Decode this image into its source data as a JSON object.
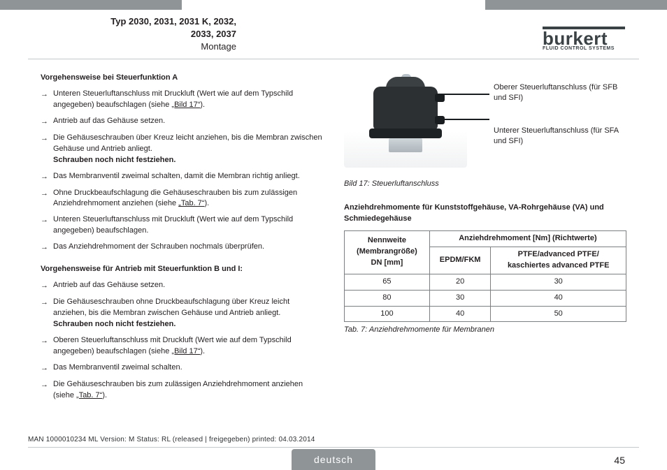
{
  "header": {
    "title_line1": "Typ 2030, 2031, 2031 K, 2032,",
    "title_line2": "2033, 2037",
    "subtitle": "Montage"
  },
  "logo": {
    "brand": "burkert",
    "tagline": "FLUID CONTROL SYSTEMS"
  },
  "colors": {
    "bar": "#8f9497",
    "text": "#231f20",
    "rule": "#c5c8ca",
    "tableBorder": "#7b7f82",
    "logo": "#3a4246"
  },
  "left": {
    "headingA": "Vorgehensweise bei Steuerfunktion A",
    "stepsA": [
      "Unteren Steuerluftanschluss mit Druckluft (Wert wie auf dem Typschild angegeben) beaufschlagen (siehe „Bild 17“).",
      "Antrieb auf das Gehäuse setzen.",
      "Die Gehäuseschrauben über Kreuz leicht anziehen, bis die Membran zwischen Gehäuse und Antrieb anliegt. Schrauben noch nicht festziehen.",
      "Das Membranventil zweimal schalten, damit die Membran richtig anliegt.",
      "Ohne Druckbeaufschlagung die Gehäuseschrauben bis zum zulässigen Anziehdrehmoment anziehen (siehe „Tab. 7“).",
      "Unteren Steuerluftanschluss mit Druckluft (Wert wie auf dem Typschild angegeben) beaufschlagen.",
      "Das Anziehdrehmoment der Schrauben nochmals überprüfen."
    ],
    "headingB": "Vorgehensweise für Antrieb mit Steuerfunktion B und I:",
    "stepsB": [
      "Antrieb auf das Gehäuse setzen.",
      "Die Gehäuseschrauben ohne Druckbeaufschlagung über Kreuz leicht anziehen, bis die Membran zwischen Gehäuse und Antrieb anliegt. Schrauben noch nicht festziehen.",
      "Oberen Steuerluftanschluss mit Druckluft (Wert wie auf dem Typschild angegeben) beaufschlagen (siehe „Bild 17“).",
      "Das Membranventil zweimal schalten.",
      "Die Gehäuseschrauben bis zum zulässigen Anziehdrehmoment anziehen (siehe „Tab. 7“)."
    ],
    "boldNote": "Schrauben noch nicht festziehen.",
    "linkBild17": "„Bild 17“",
    "linkTab7": "„Tab. 7“"
  },
  "right": {
    "figLabel1": "Oberer Steuerluftanschluss (für SFB und SFI)",
    "figLabel2": "Unterer Steuerluftanschluss (für SFA und SFI)",
    "figCaption": "Bild 17:   Steuerluftanschluss",
    "tableTitle": "Anziehdrehmomente für Kunststoffgehäuse, VA-Rohrgehäuse (VA) und Schmiedegehäuse",
    "table": {
      "headCol1_l1": "Nennweite",
      "headCol1_l2": "(Membrangröße)",
      "headCol1_l3": "DN [mm]",
      "headSpan": "Anziehdrehmoment [Nm] (Richtwerte)",
      "headCol2": "EPDM/FKM",
      "headCol3_l1": "PTFE/advanced PTFE/",
      "headCol3_l2": "kaschiertes advanced PTFE",
      "rows": [
        {
          "dn": "65",
          "epdm": "20",
          "ptfe": "30"
        },
        {
          "dn": "80",
          "epdm": "30",
          "ptfe": "40"
        },
        {
          "dn": "100",
          "epdm": "40",
          "ptfe": "50"
        }
      ]
    },
    "tabCaption": "Tab. 7:     Anziehdrehmomente für Membranen"
  },
  "footer": {
    "meta": "MAN  1000010234  ML  Version: M Status: RL (released | freigegeben)  printed: 04.03.2014",
    "lang": "deutsch",
    "page": "45"
  }
}
